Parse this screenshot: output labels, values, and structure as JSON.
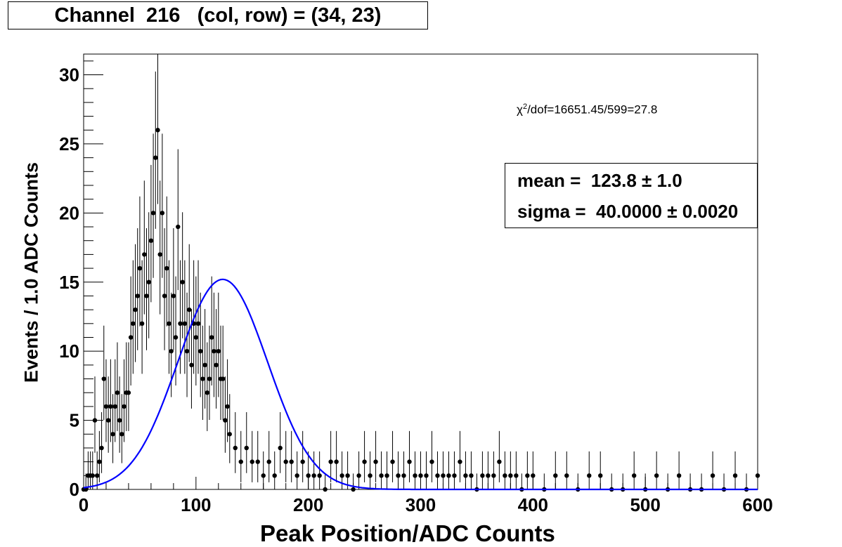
{
  "title": "Channel  216   (col, row) = (34, 23)",
  "chi2": {
    "symbol": "χ",
    "sup": "2",
    "rest": "/dof=16651.45/599=27.8"
  },
  "stats": {
    "mean_line": "mean =  123.8 ± 1.0",
    "sigma_line": "sigma =  40.0000 ± 0.0020"
  },
  "chart_data": {
    "type": "scatter",
    "xlabel": "Peak Position/ADC Counts",
    "ylabel": "Events / 1.0 ADC Counts",
    "xlim": [
      0,
      600
    ],
    "ylim": [
      0,
      31.5
    ],
    "x_ticks": [
      0,
      100,
      200,
      300,
      400,
      500,
      600
    ],
    "x_tick_labels": [
      "0",
      "100",
      "200",
      "300",
      "400",
      "500",
      "600"
    ],
    "y_ticks": [
      0,
      5,
      10,
      15,
      20,
      25,
      30
    ],
    "y_tick_labels": [
      "0",
      "5",
      "10",
      "15",
      "20",
      "25",
      "30"
    ],
    "grid": false,
    "series": [
      {
        "kind": "histogram-points-with-errors",
        "color": "#000000",
        "x": [
          0,
          2,
          4,
          6,
          8,
          10,
          12,
          14,
          16,
          18,
          20,
          22,
          24,
          26,
          28,
          30,
          32,
          34,
          36,
          38,
          40,
          42,
          44,
          46,
          48,
          50,
          52,
          54,
          56,
          58,
          60,
          62,
          64,
          66,
          68,
          70,
          72,
          74,
          76,
          78,
          80,
          82,
          84,
          86,
          88,
          90,
          92,
          94,
          96,
          98,
          100,
          102,
          104,
          106,
          108,
          110,
          112,
          114,
          116,
          118,
          120,
          122,
          124,
          126,
          128,
          130,
          135,
          140,
          145,
          150,
          155,
          160,
          165,
          170,
          175,
          180,
          185,
          190,
          195,
          200,
          205,
          210,
          215,
          220,
          225,
          230,
          235,
          240,
          245,
          250,
          255,
          260,
          265,
          270,
          275,
          280,
          285,
          290,
          295,
          300,
          305,
          310,
          315,
          320,
          325,
          330,
          335,
          340,
          345,
          350,
          355,
          360,
          365,
          370,
          375,
          380,
          385,
          390,
          395,
          400,
          410,
          420,
          430,
          440,
          450,
          460,
          470,
          480,
          490,
          500,
          510,
          520,
          530,
          540,
          550,
          560,
          570,
          580,
          590,
          600
        ],
        "y": [
          0,
          0,
          1,
          1,
          1,
          5,
          1,
          2,
          3,
          8,
          6,
          5,
          6,
          4,
          6,
          7,
          5,
          4,
          6,
          7,
          7,
          11,
          12,
          13,
          14,
          16,
          12,
          17,
          14,
          15,
          18,
          20,
          24,
          26,
          17,
          20,
          14,
          16,
          12,
          10,
          14,
          11,
          19,
          12,
          15,
          12,
          10,
          13,
          9,
          12,
          11,
          12,
          10,
          8,
          9,
          7,
          8,
          11,
          10,
          9,
          10,
          8,
          8,
          5,
          6,
          4,
          3,
          2,
          3,
          2,
          2,
          1,
          2,
          1,
          3,
          2,
          2,
          1,
          2,
          1,
          1,
          1,
          0,
          2,
          2,
          1,
          1,
          0,
          1,
          2,
          1,
          2,
          1,
          1,
          2,
          1,
          1,
          2,
          1,
          1,
          1,
          2,
          1,
          1,
          1,
          1,
          2,
          1,
          1,
          0,
          1,
          1,
          1,
          2,
          1,
          1,
          1,
          0,
          1,
          1,
          0,
          1,
          1,
          0,
          1,
          1,
          0,
          0,
          1,
          0,
          1,
          0,
          1,
          0,
          0,
          1,
          0,
          1,
          0,
          1
        ]
      },
      {
        "kind": "gaussian-fit",
        "color": "#0000ff",
        "amplitude": 15.2,
        "mean": 123.8,
        "sigma": 40.0
      }
    ]
  }
}
